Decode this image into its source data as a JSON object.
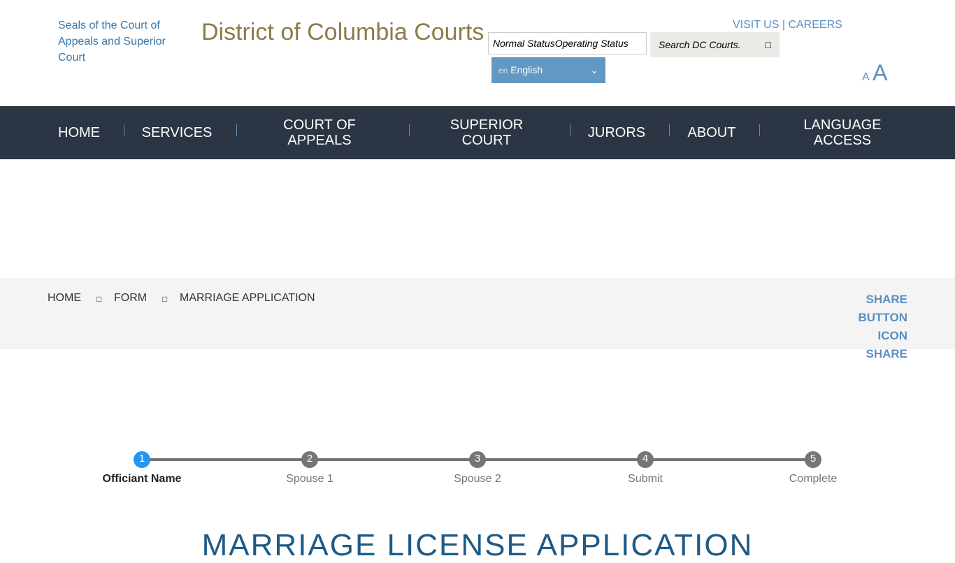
{
  "header": {
    "seal_alt": "Seals of the Court of Appeals and Superior Court",
    "title": "District of Columbia Courts",
    "visit_us": "VISIT US",
    "careers": "CAREERS",
    "link_sep": " | ",
    "status_alt": "Normal Status",
    "status_label": "Operating Status",
    "search_placeholder": "Search DC Courts.",
    "search_icon": "□",
    "lang_flag_alt": "en",
    "language": "English",
    "font_small": "A",
    "font_large": "A"
  },
  "nav": {
    "items": [
      {
        "label": "HOME"
      },
      {
        "label": "SERVICES"
      },
      {
        "label": "COURT OF APPEALS"
      },
      {
        "label": "SUPERIOR COURT"
      },
      {
        "label": "JURORS"
      },
      {
        "label": "ABOUT"
      },
      {
        "label": "LANGUAGE ACCESS"
      }
    ]
  },
  "breadcrumb": {
    "items": [
      "HOME",
      "FORM",
      "MARRIAGE APPLICATION"
    ],
    "sep_icon": "□"
  },
  "share": {
    "alt": "SHARE BUTTON ICON",
    "label": "SHARE"
  },
  "steps": {
    "active_color": "#2196f3",
    "items": [
      {
        "num": "1",
        "label": "Officiant Name"
      },
      {
        "num": "2",
        "label": "Spouse 1"
      },
      {
        "num": "3",
        "label": "Spouse 2"
      },
      {
        "num": "4",
        "label": "Submit"
      },
      {
        "num": "5",
        "label": "Complete"
      }
    ]
  },
  "main": {
    "heading": "MARRIAGE LICENSE APPLICATION"
  }
}
